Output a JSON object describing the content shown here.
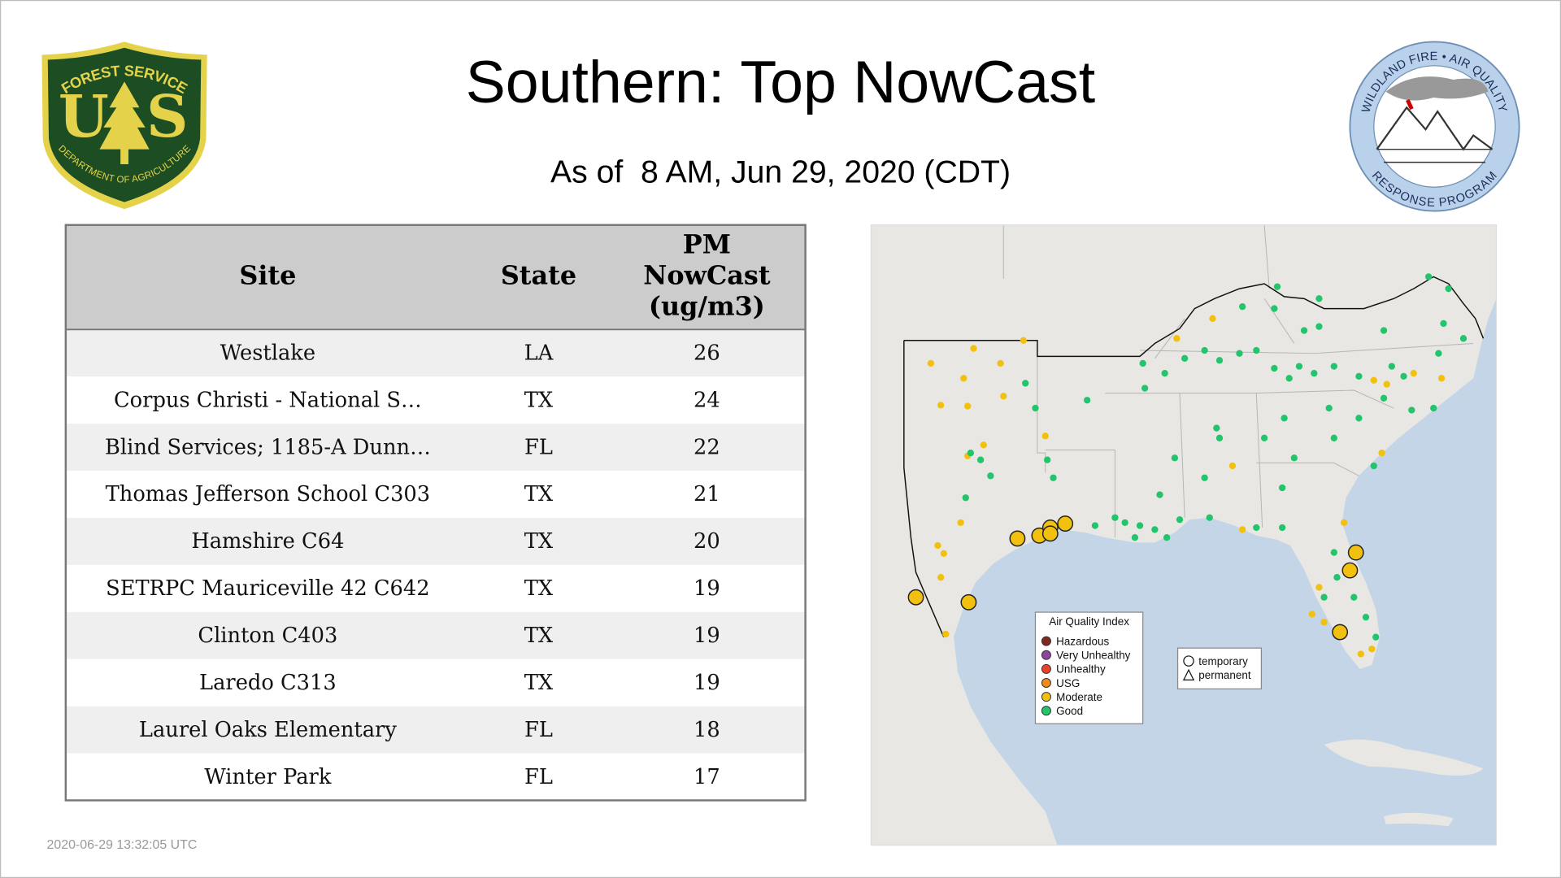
{
  "header": {
    "title": "Southern: Top NowCast",
    "subtitle": "As of  8 AM, Jun 29, 2020 (CDT)"
  },
  "logos": {
    "forest_service": {
      "top": "FOREST SERVICE",
      "left_letter": "U",
      "right_letter": "S",
      "bottom": "DEPARTMENT OF AGRICULTURE"
    },
    "air_quality_program": {
      "top": "WILDLAND FIRE • AIR QUALITY",
      "bottom": "RESPONSE PROGRAM"
    }
  },
  "table": {
    "columns": [
      [
        "Site"
      ],
      [
        "State"
      ],
      [
        "PM",
        "NowCast",
        "(ug/m3)"
      ]
    ],
    "rows": [
      [
        "Westlake",
        "LA",
        26
      ],
      [
        "Corpus Christi - National S…",
        "TX",
        24
      ],
      [
        "Blind Services; 1185-A Dunn…",
        "FL",
        22
      ],
      [
        "Thomas Jefferson School C303",
        "TX",
        21
      ],
      [
        "Hamshire C64",
        "TX",
        20
      ],
      [
        "SETRPC Mauriceville 42 C642",
        "TX",
        19
      ],
      [
        "Clinton C403",
        "TX",
        19
      ],
      [
        "Laredo C313",
        "TX",
        19
      ],
      [
        "Laurel Oaks Elementary",
        "FL",
        18
      ],
      [
        "Winter Park",
        "FL",
        17
      ]
    ]
  },
  "map": {
    "legend": {
      "title": "Air Quality Index",
      "items": [
        {
          "label": "Hazardous",
          "color": "#7e2a22"
        },
        {
          "label": "Very Unhealthy",
          "color": "#8e44a0"
        },
        {
          "label": "Unhealthy",
          "color": "#e8412c"
        },
        {
          "label": "USG",
          "color": "#f08a1c"
        },
        {
          "label": "Moderate",
          "color": "#f2c00f"
        },
        {
          "label": "Good",
          "color": "#22c46c"
        }
      ]
    },
    "site_types": [
      "temporary",
      "permanent"
    ]
  },
  "footer": {
    "timestamp": "2020-06-29 13:32:05 UTC"
  }
}
